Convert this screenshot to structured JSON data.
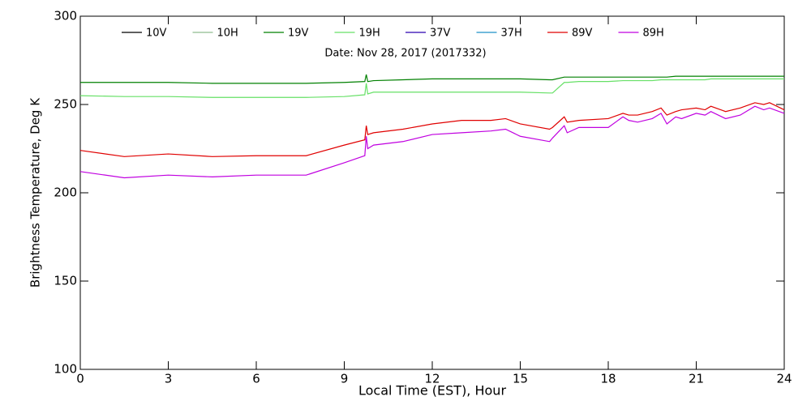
{
  "chart_data": {
    "type": "line",
    "annotation": "Date: Nov 28, 2017 (2017332)",
    "x_label": "Local Time (EST), Hour",
    "y_label": "Brightness Temperature, Deg K",
    "xlim": [
      0,
      24
    ],
    "xticks": [
      0,
      3,
      6,
      9,
      12,
      15,
      18,
      21,
      24
    ],
    "ylim": [
      100,
      300
    ],
    "yticks": [
      100,
      150,
      200,
      250,
      300
    ],
    "x": [
      0,
      1.5,
      3,
      4.5,
      6,
      7.7,
      9,
      9.7,
      9.75,
      9.8,
      10,
      11,
      12,
      13,
      14,
      14.5,
      15,
      16,
      16.1,
      16.5,
      16.6,
      17,
      18,
      18.5,
      18.7,
      19,
      19.5,
      19.8,
      20,
      20.3,
      20.5,
      21,
      21.3,
      21.5,
      22,
      22.5,
      23,
      23.3,
      23.5,
      24
    ],
    "series": [
      {
        "name": "10V",
        "color": "#000000",
        "values": [
          null,
          null,
          null,
          null,
          null,
          null,
          null,
          null,
          null,
          null,
          null,
          null,
          null,
          null,
          null,
          null,
          null,
          null,
          null,
          null,
          null,
          null,
          null,
          null,
          null,
          null,
          null,
          null,
          null,
          null,
          null,
          null,
          null,
          null,
          null,
          null,
          null,
          null,
          null,
          null
        ]
      },
      {
        "name": "10H",
        "color": "#8fbc8f",
        "values": [
          null,
          null,
          null,
          null,
          null,
          null,
          null,
          null,
          null,
          null,
          null,
          null,
          null,
          null,
          null,
          null,
          null,
          null,
          null,
          null,
          null,
          null,
          null,
          null,
          null,
          null,
          null,
          null,
          null,
          null,
          null,
          null,
          null,
          null,
          null,
          null,
          null,
          null,
          null,
          null
        ]
      },
      {
        "name": "19V",
        "color": "#008000",
        "values": [
          262.5,
          262.5,
          262.5,
          262,
          262,
          262,
          262.5,
          263,
          267,
          263,
          263.5,
          264,
          264.5,
          264.5,
          264.5,
          264.5,
          264.5,
          264,
          264,
          265.5,
          265.5,
          265.5,
          265.5,
          265.5,
          265.5,
          265.5,
          265.5,
          265.5,
          265.5,
          266,
          266,
          266,
          266,
          266,
          266,
          266,
          266,
          266,
          266,
          266
        ]
      },
      {
        "name": "19H",
        "color": "#66e066",
        "values": [
          255,
          254.5,
          254.5,
          254,
          254,
          254,
          254.5,
          255.5,
          262,
          256,
          257,
          257,
          257,
          257,
          257,
          257,
          257,
          256.5,
          256.5,
          262.5,
          262.5,
          263,
          263,
          263.5,
          263.5,
          263.5,
          263.5,
          264,
          264,
          264,
          264,
          264,
          264,
          264.5,
          264.5,
          264.5,
          264.5,
          264.5,
          264.5,
          264.5
        ]
      },
      {
        "name": "37V",
        "color": "#2a00b0",
        "values": [
          null,
          null,
          null,
          null,
          null,
          null,
          null,
          null,
          null,
          null,
          null,
          null,
          null,
          null,
          null,
          null,
          null,
          null,
          null,
          null,
          null,
          null,
          null,
          null,
          null,
          null,
          null,
          null,
          null,
          null,
          null,
          null,
          null,
          null,
          null,
          null,
          null,
          null,
          null,
          null
        ]
      },
      {
        "name": "37H",
        "color": "#1e90c8",
        "values": [
          null,
          null,
          null,
          null,
          null,
          null,
          null,
          null,
          null,
          null,
          null,
          null,
          null,
          null,
          null,
          null,
          null,
          null,
          null,
          null,
          null,
          null,
          null,
          null,
          null,
          null,
          null,
          null,
          null,
          null,
          null,
          null,
          null,
          null,
          null,
          null,
          null,
          null,
          null,
          null
        ]
      },
      {
        "name": "89V",
        "color": "#e00000",
        "values": [
          224,
          220.5,
          222,
          220.5,
          221,
          221,
          227,
          230,
          238,
          233,
          234,
          236,
          239,
          241,
          241,
          242,
          239,
          236,
          237,
          243,
          240,
          241,
          242,
          245,
          244,
          244,
          246,
          248,
          244,
          246,
          247,
          248,
          247,
          249,
          246,
          248,
          251,
          250,
          251,
          247
        ]
      },
      {
        "name": "89H",
        "color": "#c000e0",
        "values": [
          212,
          208.5,
          210,
          209,
          210,
          210,
          217,
          221,
          232,
          225,
          227,
          229,
          233,
          234,
          235,
          236,
          232,
          229,
          231,
          238,
          234,
          237,
          237,
          243,
          241,
          240,
          242,
          245,
          239,
          243,
          242,
          245,
          244,
          246,
          242,
          244,
          249,
          247,
          248,
          245
        ]
      }
    ]
  }
}
